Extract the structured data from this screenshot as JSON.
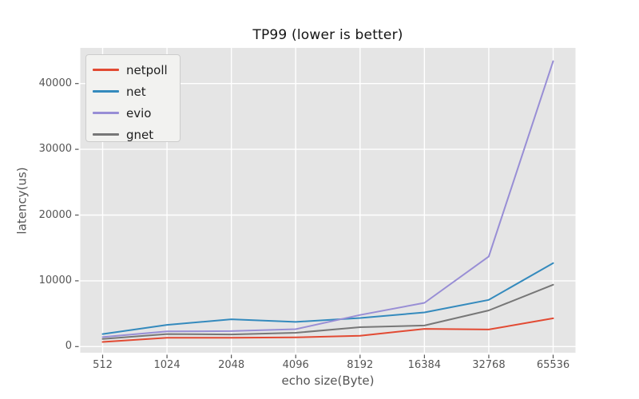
{
  "chart_data": {
    "type": "line",
    "title": "TP99 (lower is better)",
    "xlabel": "echo size(Byte)",
    "ylabel": "latency(us)",
    "categories": [
      "512",
      "1024",
      "2048",
      "4096",
      "8192",
      "16384",
      "32768",
      "65536"
    ],
    "x_scale": "log2-categorical",
    "series": [
      {
        "name": "netpoll",
        "color": "#E24A33",
        "values": [
          700,
          1350,
          1350,
          1400,
          1650,
          2700,
          2600,
          4300
        ]
      },
      {
        "name": "net",
        "color": "#348ABD",
        "values": [
          1900,
          3300,
          4150,
          3750,
          4350,
          5200,
          7100,
          12700
        ]
      },
      {
        "name": "evio",
        "color": "#988ED5",
        "values": [
          1450,
          2300,
          2350,
          2650,
          4800,
          6650,
          13700,
          43400
        ]
      },
      {
        "name": "gnet",
        "color": "#777777",
        "values": [
          1150,
          1900,
          1850,
          2100,
          2950,
          3200,
          5500,
          9400
        ]
      }
    ],
    "y_ticks": [
      0,
      10000,
      20000,
      30000,
      40000
    ],
    "ylim": [
      -930,
      45430
    ],
    "grid": true,
    "legend_position": "upper left",
    "style": {
      "axes_background": "#E5E5E5",
      "grid_color": "#FFFFFF",
      "tick_color": "#555555",
      "label_color": "#555555",
      "title_color": "#141414",
      "figure_background": "#FFFFFF"
    }
  }
}
